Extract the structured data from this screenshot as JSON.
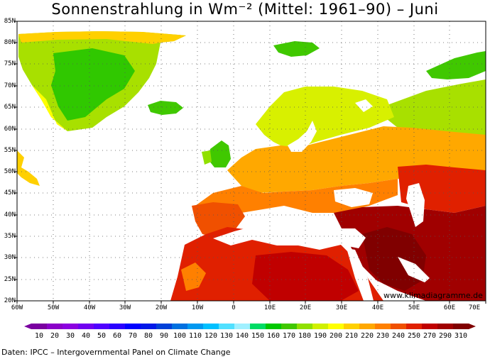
{
  "title": "Sonnenstrahlung in Wm⁻² (Mittel: 1961–90) – Juni",
  "lat_labels": [
    "85N",
    "80N",
    "75N",
    "70N",
    "65N",
    "60N",
    "55N",
    "50N",
    "45N",
    "40N",
    "35N",
    "30N",
    "25N",
    "20N"
  ],
  "lon_labels": [
    "60W",
    "50W",
    "40W",
    "30W",
    "20W",
    "10W",
    "0",
    "10E",
    "20E",
    "30E",
    "40E",
    "50E",
    "60E",
    "70E"
  ],
  "watermark": "www.klimadiagramme.de",
  "scale": {
    "labels": [
      "10",
      "20",
      "30",
      "40",
      "50",
      "60",
      "70",
      "80",
      "90",
      "100",
      "110",
      "120",
      "130",
      "140",
      "150",
      "160",
      "170",
      "180",
      "190",
      "200",
      "210",
      "220",
      "230",
      "240",
      "250",
      "270",
      "290",
      "310"
    ],
    "colors": [
      "#7a00a0",
      "#8a00c8",
      "#8c00e0",
      "#7000f0",
      "#5000ff",
      "#2a00ff",
      "#0000ff",
      "#0018e8",
      "#0040d8",
      "#0070e0",
      "#0098f0",
      "#00c0ff",
      "#50e0ff",
      "#a0f0ff",
      "#00dc64",
      "#00c800",
      "#40c800",
      "#90e000",
      "#d0f000",
      "#ffff00",
      "#ffd000",
      "#ffa800",
      "#ff8000",
      "#f05000",
      "#e02000",
      "#c00000",
      "#a00000",
      "#800000"
    ]
  },
  "source": "Daten: IPCC – Intergovernmental Panel on Climate Change"
}
